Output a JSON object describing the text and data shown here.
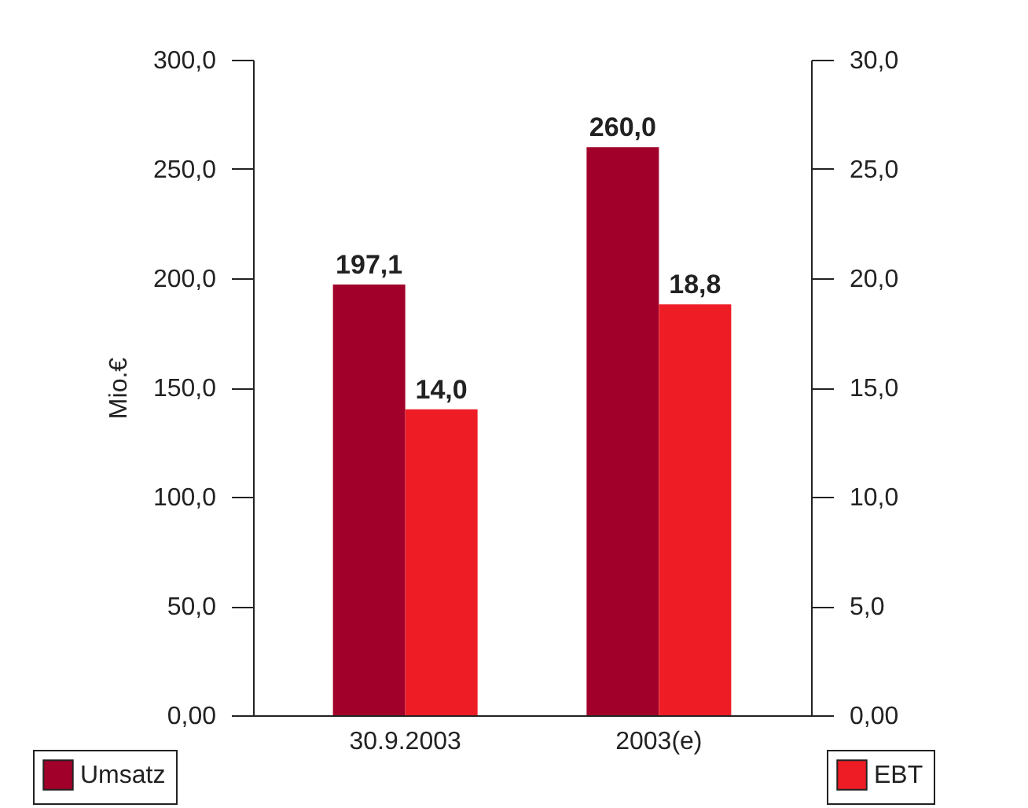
{
  "chart_data": {
    "type": "bar",
    "ylabel": "Mio.€",
    "categories": [
      "30.9.2003",
      "2003(e)"
    ],
    "series": [
      {
        "name": "Umsatz",
        "color": "#a0002a",
        "values": [
          197.1,
          260.0
        ],
        "value_labels": [
          "197,1",
          "260,0"
        ]
      },
      {
        "name": "EBT",
        "color": "#ee1c25",
        "values": [
          14.0,
          18.8
        ],
        "value_labels": [
          "14,0",
          "18,8"
        ],
        "axis": "y2"
      }
    ],
    "ylim": [
      0,
      300
    ],
    "yticks": [
      {
        "value": 0,
        "label": "0,00"
      },
      {
        "value": 50,
        "label": "50,0"
      },
      {
        "value": 100,
        "label": "100,0"
      },
      {
        "value": 150,
        "label": "150,0"
      },
      {
        "value": 200,
        "label": "200,0"
      },
      {
        "value": 250,
        "label": "250,0"
      },
      {
        "value": 300,
        "label": "300,0"
      }
    ],
    "y2lim": [
      0,
      30
    ],
    "y2ticks": [
      {
        "value": 0,
        "label": "0,00"
      },
      {
        "value": 5,
        "label": "5,0"
      },
      {
        "value": 10,
        "label": "10,0"
      },
      {
        "value": 15,
        "label": "15,0"
      },
      {
        "value": 20,
        "label": "20,0"
      },
      {
        "value": 25,
        "label": "25,0"
      },
      {
        "value": 30,
        "label": "30,0"
      }
    ],
    "grid": false,
    "legend": "bottom"
  }
}
